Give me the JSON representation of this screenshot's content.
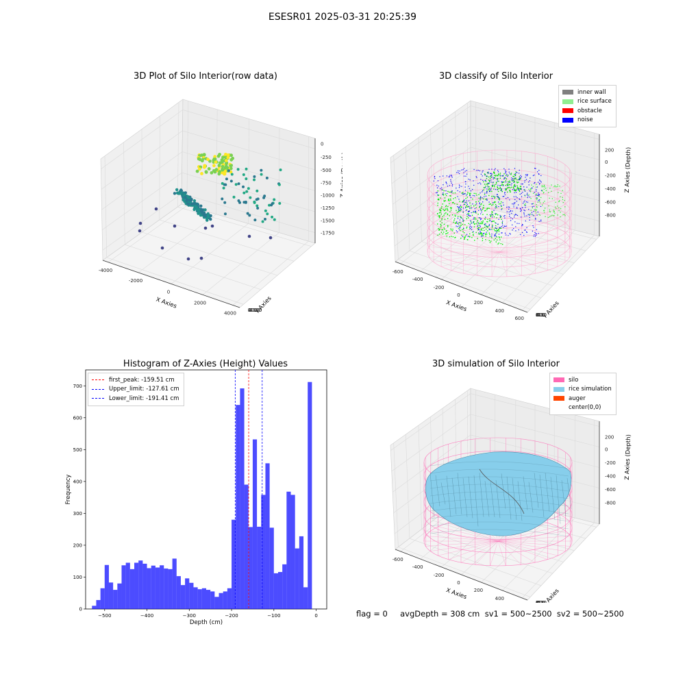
{
  "suptitle": "ESESR01 2025-03-31 20:25:39",
  "status_text": "flag = 0     avgDepth = 308 cm  sv1 = 500~2500  sv2 = 500~2500",
  "chart_data": [
    {
      "type": "scatter",
      "title": "3D Plot of Silo Interior(row data)",
      "xlabel": "X Axies",
      "ylabel": "Y Axies",
      "zlabel": "Z Axies (Depth)",
      "x_ticks": [
        "-4000",
        "-2000",
        "0",
        "2000",
        "4000"
      ],
      "y_ticks": [
        "-4000",
        "-2000",
        "0",
        "2000",
        "4000"
      ],
      "z_ticks": [
        "0",
        "-250",
        "-500",
        "-750",
        "-1000",
        "-1250",
        "-1500",
        "-1750"
      ]
    },
    {
      "type": "scatter",
      "title": "3D classify of Silo Interior",
      "xlabel": "X Axies",
      "ylabel": "Y Axies",
      "zlabel": "Z Axies (Depth)",
      "x_ticks": [
        "-600",
        "-400",
        "-200",
        "0",
        "200",
        "400",
        "600"
      ],
      "y_ticks": [
        "-600",
        "-400",
        "-200",
        "0",
        "200",
        "400",
        "600"
      ],
      "z_ticks": [
        "200",
        "0",
        "-200",
        "-400",
        "-600",
        "-800"
      ],
      "legend": [
        {
          "label": "inner wall",
          "color": "#808080"
        },
        {
          "label": "rice surface",
          "color": "#90ee90"
        },
        {
          "label": "obstacle",
          "color": "#ff0000"
        },
        {
          "label": "noise",
          "color": "#0000ff"
        }
      ]
    },
    {
      "type": "bar",
      "title": "Histogram of Z-Axies (Height) Values",
      "xlabel": "Depth (cm)",
      "ylabel": "Frequency",
      "xlim": [
        -545,
        25
      ],
      "ylim": [
        0,
        750
      ],
      "x_ticks": [
        -500,
        -400,
        -300,
        -200,
        -100,
        0
      ],
      "y_ticks": [
        0,
        100,
        200,
        300,
        400,
        500,
        600,
        700
      ],
      "bin_width": 10,
      "bin_starts": [
        -530,
        -520,
        -510,
        -500,
        -490,
        -480,
        -470,
        -460,
        -450,
        -440,
        -430,
        -420,
        -410,
        -400,
        -390,
        -380,
        -370,
        -360,
        -350,
        -340,
        -330,
        -320,
        -310,
        -300,
        -290,
        -280,
        -270,
        -260,
        -250,
        -240,
        -230,
        -220,
        -210,
        -200,
        -190,
        -180,
        -170,
        -160,
        -150,
        -140,
        -130,
        -120,
        -110,
        -100,
        -90,
        -80,
        -70,
        -60,
        -50,
        -40,
        -30,
        -20,
        -10
      ],
      "frequencies": [
        10,
        28,
        65,
        138,
        83,
        60,
        80,
        137,
        145,
        125,
        145,
        152,
        142,
        128,
        136,
        130,
        137,
        127,
        125,
        158,
        103,
        75,
        96,
        82,
        68,
        62,
        65,
        60,
        55,
        38,
        50,
        55,
        65,
        280,
        640,
        692,
        390,
        257,
        532,
        258,
        358,
        457,
        255,
        112,
        116,
        140,
        368,
        358,
        190,
        228,
        68,
        712,
        0
      ],
      "bar_color": "#0000ff",
      "vlines": [
        {
          "label": "first_peak: -159.51 cm",
          "x": -159.51,
          "color": "#ff0000"
        },
        {
          "label": "Upper_limit: -127.61 cm",
          "x": -127.61,
          "color": "#0000ff"
        },
        {
          "label": "Lower_limit: -191.41 cm",
          "x": -191.41,
          "color": "#0000ff"
        }
      ]
    },
    {
      "type": "other",
      "title": "3D simulation of Silo Interior",
      "xlabel": "X Axies",
      "ylabel": "Y Axies",
      "zlabel": "Z Axies (Depth)",
      "x_ticks": [
        "-600",
        "-400",
        "-200",
        "0",
        "200",
        "400",
        "600"
      ],
      "y_ticks": [
        "-600",
        "-400",
        "-200",
        "0",
        "200",
        "400",
        "600"
      ],
      "z_ticks": [
        "200",
        "0",
        "-200",
        "-400",
        "-600",
        "-800"
      ],
      "legend": [
        {
          "label": "silo",
          "color": "#ff69b4"
        },
        {
          "label": "rice simulation",
          "color": "#87ceeb"
        },
        {
          "label": "auger",
          "color": "#ff4500"
        },
        {
          "label": "center(0,0)",
          "color": ""
        }
      ]
    }
  ]
}
